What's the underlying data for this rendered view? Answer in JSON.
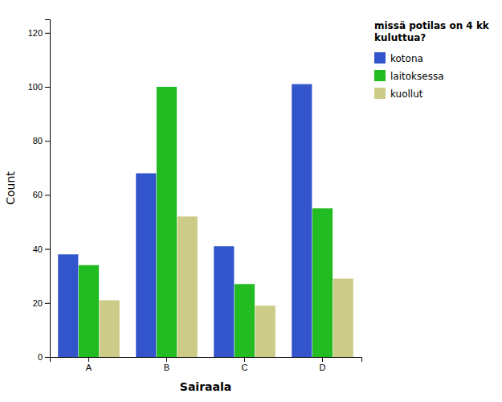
{
  "chart_data": {
    "type": "bar",
    "categories": [
      "A",
      "B",
      "C",
      "D"
    ],
    "series": [
      {
        "name": "kotona",
        "color": "#3355CC",
        "values": [
          38,
          68,
          41,
          101
        ]
      },
      {
        "name": "laitoksessa",
        "color": "#22BB22",
        "values": [
          34,
          100,
          27,
          55
        ]
      },
      {
        "name": "kuollut",
        "color": "#CCCC88",
        "values": [
          21,
          52,
          19,
          29
        ]
      }
    ],
    "xlabel": "Sairaala",
    "ylabel": "Count",
    "ylim": [
      0,
      125
    ],
    "yticks": [
      0,
      20,
      40,
      60,
      80,
      100,
      120
    ],
    "legend_title": "missä potilas on 4 kk\nkuluttua?",
    "legend": "right",
    "grid": false
  }
}
